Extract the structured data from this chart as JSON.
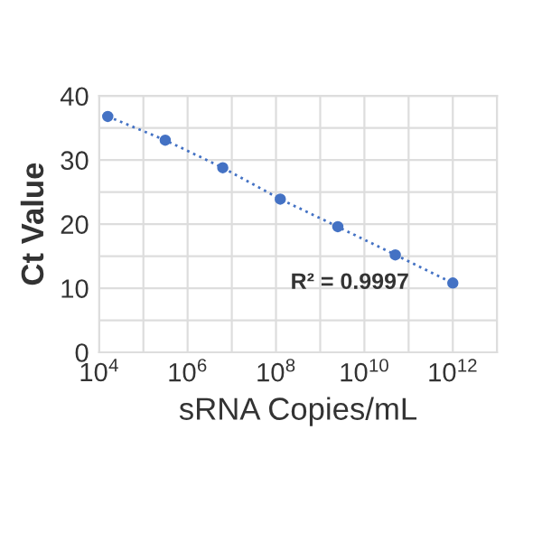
{
  "chart_data": {
    "type": "line",
    "xlabel": "sRNA Copies/mL",
    "ylabel": "Ct Value",
    "x": [
      15625,
      312500,
      6250000,
      125000000,
      2500000000,
      50000000000,
      1000000000000
    ],
    "series": [
      {
        "color": "#4472c4",
        "values": [
          36.8,
          33.1,
          28.8,
          23.9,
          19.6,
          15.2,
          10.8
        ]
      }
    ],
    "marker": "circle",
    "line_style": "dotted",
    "log": "x",
    "xlim": [
      10000,
      10000000000000
    ],
    "xticks": [
      {
        "value": 10000,
        "label": "10$^{4}$"
      },
      {
        "value": 100000,
        "label": null
      },
      {
        "value": 1000000,
        "label": "10$^{6}$"
      },
      {
        "value": 10000000,
        "label": null
      },
      {
        "value": 100000000,
        "label": "10$^{8}$"
      },
      {
        "value": 1000000000,
        "label": null
      },
      {
        "value": 10000000000,
        "label": "10$^{10}$"
      },
      {
        "value": 100000000000,
        "label": null
      },
      {
        "value": 1000000000000,
        "label": "10$^{12}$"
      },
      {
        "value": 10000000000000,
        "label": null
      }
    ],
    "ylim": [
      0,
      40
    ],
    "yticks": [
      0,
      {
        "value": 5,
        "label": null
      },
      10,
      {
        "value": 15,
        "label": null
      },
      20,
      {
        "value": 25,
        "label": null
      },
      30,
      {
        "value": 35,
        "label": null
      },
      40
    ],
    "grid": true,
    "annotations": [
      "R² = 0.9997"
    ]
  }
}
